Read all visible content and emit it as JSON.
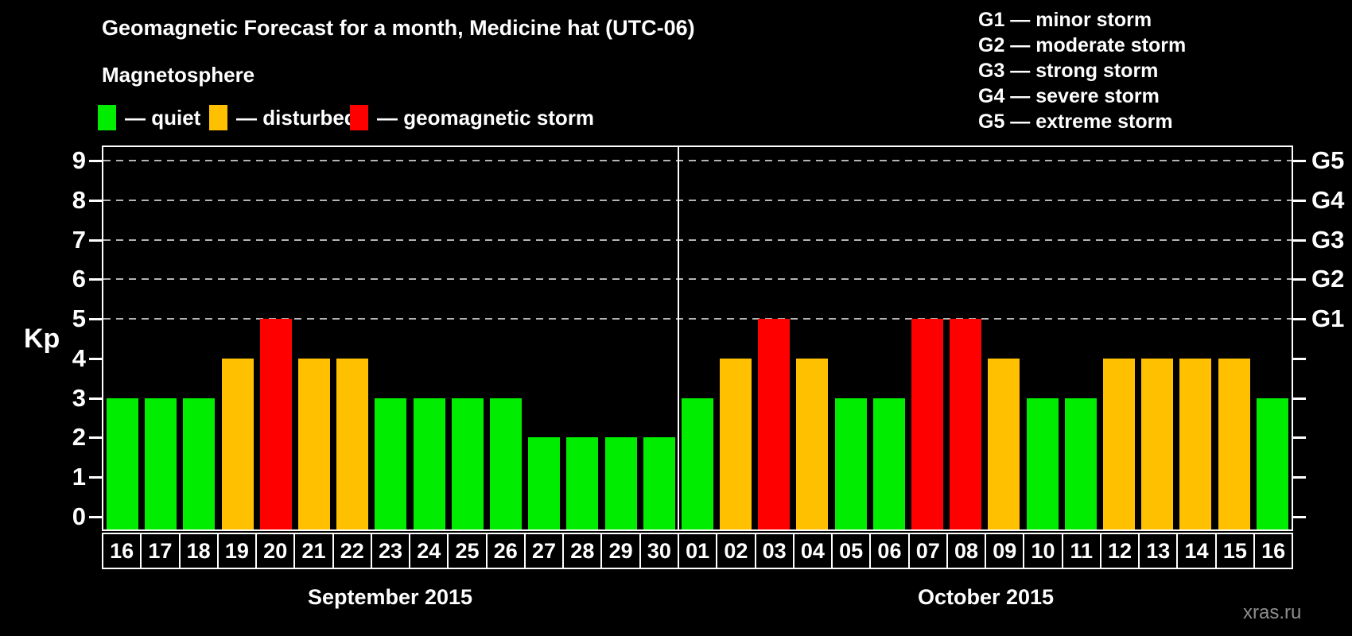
{
  "title": "Geomagnetic Forecast for a month, Medicine hat (UTC-06)",
  "legend": {
    "heading": "Magnetosphere",
    "items": [
      {
        "key": "quiet",
        "label": "— quiet",
        "color": "#00ed00"
      },
      {
        "key": "disturbed",
        "label": "— disturbed",
        "color": "#ffc000"
      },
      {
        "key": "storm",
        "label": "— geomagnetic storm",
        "color": "#ff0000"
      }
    ]
  },
  "g_legend": [
    "G1 — minor storm",
    "G2 — moderate storm",
    "G3 — strong storm",
    "G4 — severe storm",
    "G5 — extreme storm"
  ],
  "watermark": "xras.ru",
  "chart_data": {
    "type": "bar",
    "title": "Geomagnetic Forecast for a month, Medicine hat (UTC-06)",
    "ylabel": "Kp",
    "ylim": [
      0,
      9
    ],
    "y_ticks": [
      0,
      1,
      2,
      3,
      4,
      5,
      6,
      7,
      8,
      9
    ],
    "gridlines_at": [
      5,
      6,
      7,
      8,
      9
    ],
    "grid_on": true,
    "legend_position": "top-left",
    "right_axis_labels": [
      {
        "kp": 5,
        "label": "G1"
      },
      {
        "kp": 6,
        "label": "G2"
      },
      {
        "kp": 7,
        "label": "G3"
      },
      {
        "kp": 8,
        "label": "G4"
      },
      {
        "kp": 9,
        "label": "G5"
      }
    ],
    "months": [
      {
        "label": "September 2015",
        "days": [
          "16",
          "17",
          "18",
          "19",
          "20",
          "21",
          "22",
          "23",
          "24",
          "25",
          "26",
          "27",
          "28",
          "29",
          "30"
        ],
        "kp": [
          3,
          3,
          3,
          4,
          5,
          4,
          4,
          3,
          3,
          3,
          3,
          2,
          2,
          2,
          2
        ],
        "level": [
          "quiet",
          "quiet",
          "quiet",
          "disturbed",
          "storm",
          "disturbed",
          "disturbed",
          "quiet",
          "quiet",
          "quiet",
          "quiet",
          "quiet",
          "quiet",
          "quiet",
          "quiet"
        ]
      },
      {
        "label": "October 2015",
        "days": [
          "01",
          "02",
          "03",
          "04",
          "05",
          "06",
          "07",
          "08",
          "09",
          "10",
          "11",
          "12",
          "13",
          "14",
          "15",
          "16"
        ],
        "kp": [
          3,
          4,
          5,
          4,
          3,
          3,
          5,
          5,
          4,
          3,
          3,
          4,
          4,
          4,
          4,
          3
        ],
        "level": [
          "quiet",
          "disturbed",
          "storm",
          "disturbed",
          "quiet",
          "quiet",
          "storm",
          "storm",
          "disturbed",
          "quiet",
          "quiet",
          "disturbed",
          "disturbed",
          "disturbed",
          "disturbed",
          "quiet"
        ]
      }
    ]
  }
}
